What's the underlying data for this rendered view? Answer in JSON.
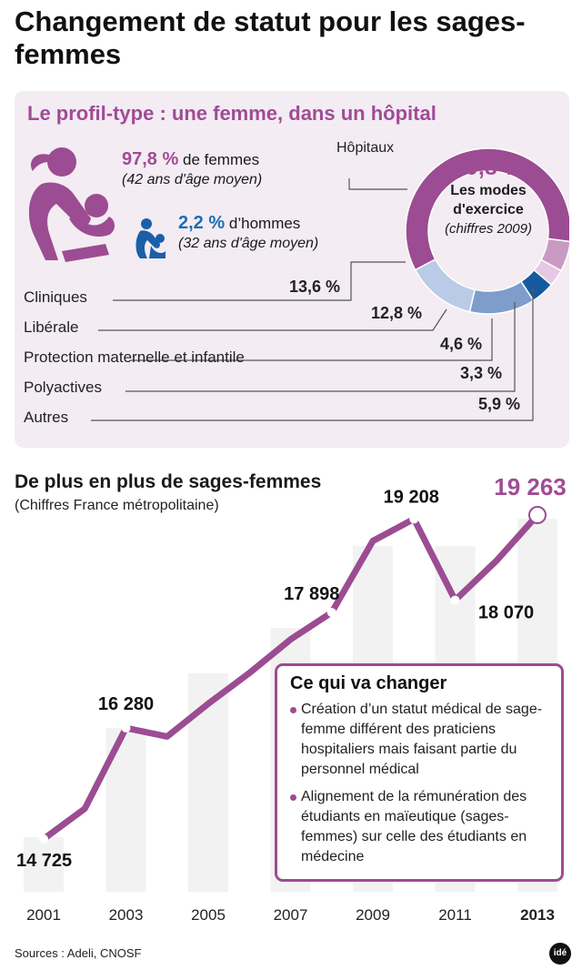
{
  "title": "Changement de statut pour les sages-femmes",
  "profile": {
    "title": "Le profil-type : une femme, dans un hôpital",
    "women": {
      "pct": "97,8 %",
      "label": "de femmes",
      "sub": "(42 ans d'âge moyen)"
    },
    "men": {
      "pct": "2,2 %",
      "label": "d’hommes",
      "sub": "(32 ans d'âge moyen)"
    },
    "donut": {
      "pct": "59,8 %",
      "line1": "Les modes",
      "line2": "d'exercice",
      "line3": "(chiffres 2009)",
      "hospital_label": "Hôpitaux"
    },
    "segments": [
      {
        "name": "Hôpitaux",
        "value": 59.8,
        "label": "59,8 %",
        "color": "#9c4c92"
      },
      {
        "name": "Autres",
        "value": 5.9,
        "label": "5,9 %",
        "color": "#c99bc4"
      },
      {
        "name": "Polyactives",
        "value": 3.3,
        "label": "3,3 %",
        "color": "#e6c8e2"
      },
      {
        "name": "Protection maternelle et infantile",
        "value": 4.6,
        "label": "4,6 %",
        "color": "#145aa0"
      },
      {
        "name": "Libérale",
        "value": 12.8,
        "label": "12,8 %",
        "color": "#7e9dcb"
      },
      {
        "name": "Cliniques",
        "value": 13.6,
        "label": "13,6 %",
        "color": "#b9cbe6"
      }
    ]
  },
  "chart_data": {
    "type": "line",
    "title": "De plus en plus de sages-femmes",
    "subtitle": "(Chiffres France métropolitaine)",
    "x": [
      2001,
      2002,
      2003,
      2004,
      2005,
      2006,
      2007,
      2008,
      2009,
      2010,
      2011,
      2012,
      2013
    ],
    "values": [
      14725,
      15150,
      16280,
      16160,
      16620,
      17050,
      17520,
      17898,
      18900,
      19208,
      18070,
      18620,
      19263
    ],
    "labels": [
      {
        "x": 2001,
        "text": "14 725"
      },
      {
        "x": 2003,
        "text": "16 280"
      },
      {
        "x": 2008,
        "text": "17 898"
      },
      {
        "x": 2010,
        "text": "19 208"
      },
      {
        "x": 2011,
        "text": "18 070"
      },
      {
        "x": 2013,
        "text": "19 263"
      }
    ],
    "xticks": [
      "2001",
      "2003",
      "2005",
      "2007",
      "2009",
      "2011",
      "2013"
    ],
    "ylim": [
      14200,
      19600
    ],
    "line_color": "#9c4c92",
    "highlight_color": "#a04c95"
  },
  "callout": {
    "title": "Ce qui va changer",
    "items": [
      "Création d’un statut médical de sage-femme différent des praticiens hospitaliers mais faisant partie du personnel médical",
      "Alignement de la rémunération des étudiants en maïeutique (sages-femmes) sur celle des étudiants en médecine"
    ]
  },
  "sources": "Sources : Adeli, CNOSF",
  "logo": "idé"
}
